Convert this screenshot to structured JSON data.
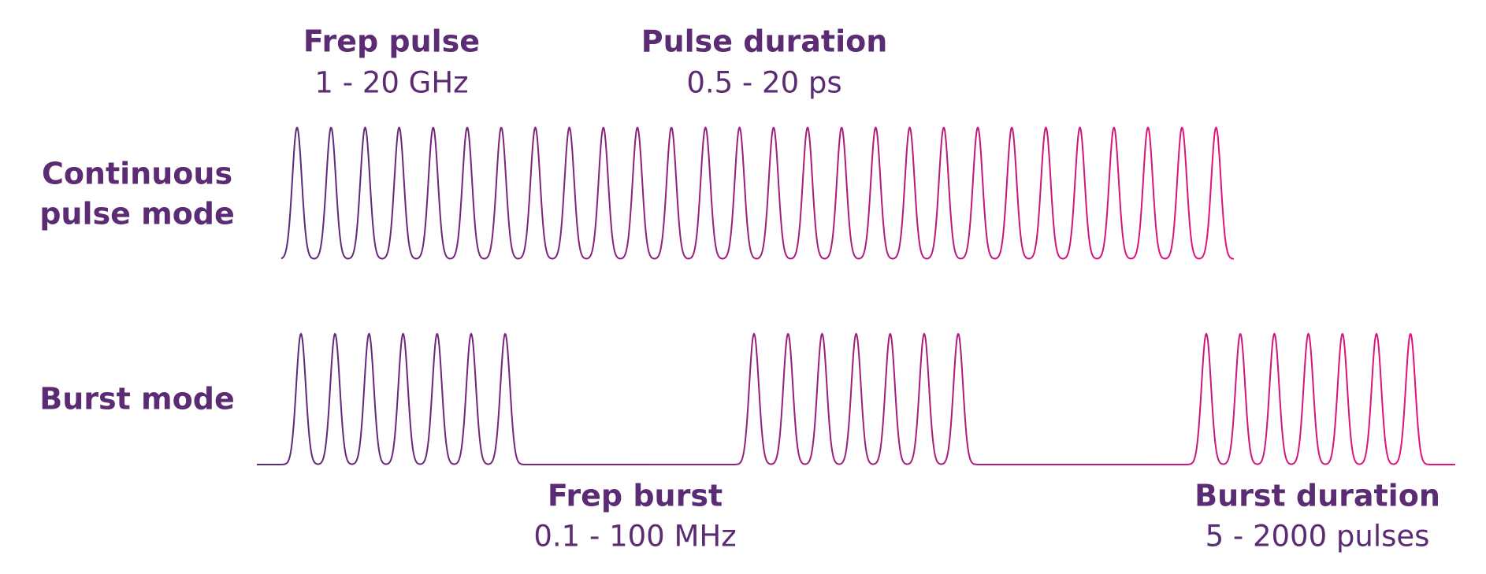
{
  "header": {
    "frep_pulse": {
      "title": "Frep pulse",
      "range": "1 - 20 GHz"
    },
    "pulse_duration": {
      "title": "Pulse duration",
      "range": "0.5 - 20 ps"
    }
  },
  "modes": [
    {
      "label_lines": [
        "Continuous",
        "pulse mode"
      ]
    },
    {
      "label_lines": [
        "Burst mode"
      ]
    }
  ],
  "footer": {
    "frep_burst": {
      "title": "Frep burst",
      "range": "0.1 - 100 MHz"
    },
    "burst_duration": {
      "title": "Burst duration",
      "range": "5 - 2000 pulses"
    }
  }
}
